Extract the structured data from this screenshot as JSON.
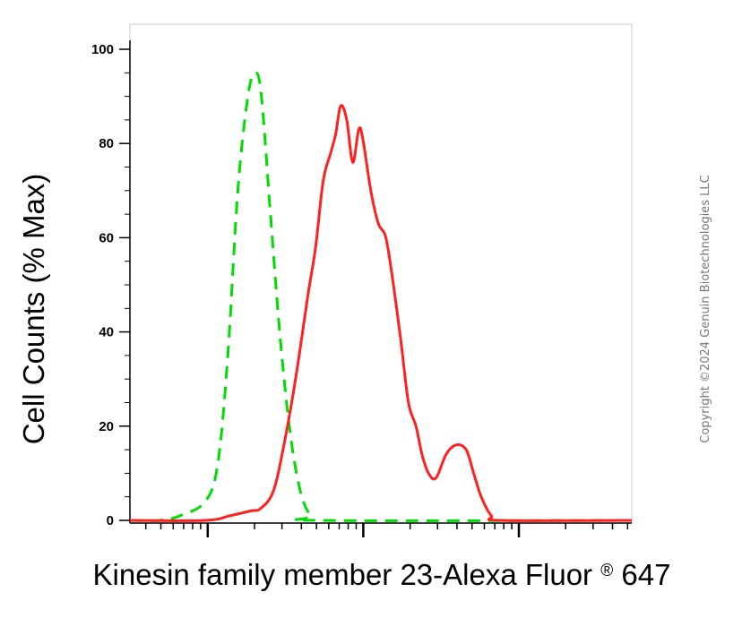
{
  "chart_data": {
    "type": "line",
    "xlabel": "Kinesin family member 23-Alexa Fluor",
    "xlabel_mark": "®",
    "xlabel_suffix": " 647",
    "ylabel": "Cell Counts (% Max)",
    "ylim": [
      0,
      100
    ],
    "y_ticks": [
      "0",
      "20",
      "40",
      "60",
      "80",
      "100"
    ],
    "x_scale": "log",
    "grid": false,
    "series": [
      {
        "color": "#00dd00",
        "style": "dashed",
        "points": [
          [
            0.0,
            0
          ],
          [
            0.06,
            0
          ],
          [
            0.1,
            1
          ],
          [
            0.15,
            4
          ],
          [
            0.175,
            12
          ],
          [
            0.195,
            35
          ],
          [
            0.215,
            70
          ],
          [
            0.235,
            90
          ],
          [
            0.25,
            95
          ],
          [
            0.262,
            90
          ],
          [
            0.28,
            65
          ],
          [
            0.3,
            38
          ],
          [
            0.32,
            18
          ],
          [
            0.34,
            6
          ],
          [
            0.36,
            1
          ],
          [
            0.38,
            0
          ],
          [
            1.0,
            0
          ]
        ]
      },
      {
        "color": "#ff2020",
        "style": "solid",
        "points": [
          [
            0.0,
            0
          ],
          [
            0.15,
            0
          ],
          [
            0.2,
            1
          ],
          [
            0.24,
            2
          ],
          [
            0.26,
            2.5
          ],
          [
            0.285,
            6
          ],
          [
            0.305,
            15
          ],
          [
            0.33,
            30
          ],
          [
            0.355,
            48
          ],
          [
            0.37,
            58
          ],
          [
            0.385,
            72
          ],
          [
            0.4,
            78
          ],
          [
            0.41,
            82
          ],
          [
            0.42,
            88
          ],
          [
            0.432,
            85
          ],
          [
            0.444,
            76
          ],
          [
            0.456,
            83
          ],
          [
            0.464,
            81
          ],
          [
            0.48,
            70
          ],
          [
            0.495,
            63
          ],
          [
            0.51,
            60
          ],
          [
            0.525,
            50
          ],
          [
            0.54,
            38
          ],
          [
            0.555,
            25
          ],
          [
            0.57,
            20
          ],
          [
            0.582,
            14
          ],
          [
            0.595,
            10
          ],
          [
            0.61,
            9
          ],
          [
            0.63,
            14
          ],
          [
            0.65,
            16
          ],
          [
            0.67,
            15
          ],
          [
            0.685,
            10
          ],
          [
            0.7,
            5
          ],
          [
            0.72,
            1
          ],
          [
            0.74,
            0
          ],
          [
            1.0,
            0
          ]
        ]
      }
    ]
  },
  "copyright": "Copyright ©2024 Genuin Biotechnologies LLC"
}
